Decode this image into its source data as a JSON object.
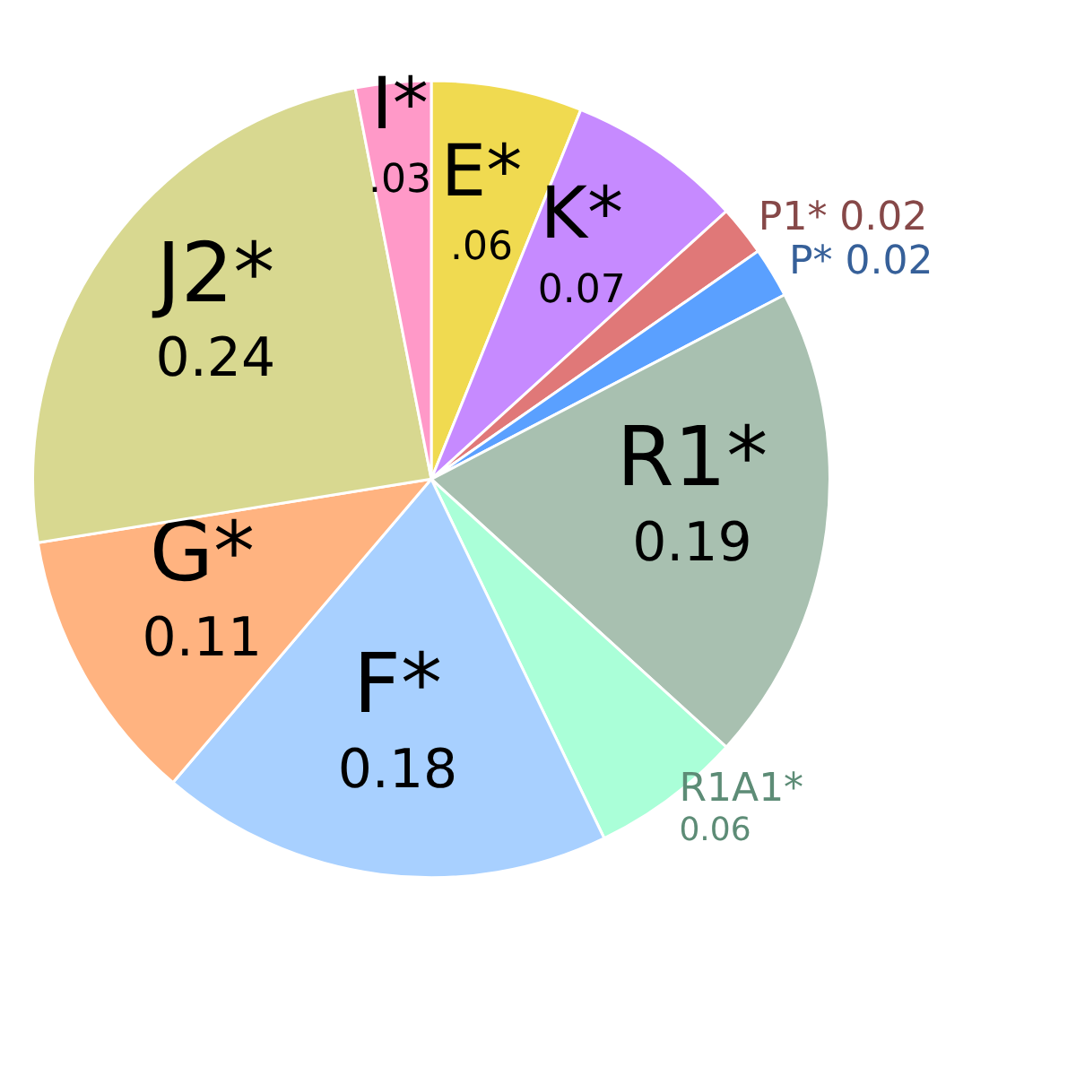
{
  "chart_data": {
    "type": "pie",
    "categories": [
      "E*",
      "K*",
      "P1*",
      "P*",
      "R1*",
      "R1A1*",
      "F*",
      "G*",
      "J2*",
      "I*"
    ],
    "values": [
      0.06,
      0.07,
      0.02,
      0.02,
      0.19,
      0.06,
      0.18,
      0.11,
      0.24,
      0.03
    ],
    "value_labels": [
      ".06",
      "0.07",
      "0.02",
      "0.02",
      "0.19",
      "0.06",
      "0.18",
      "0.11",
      "0.24",
      ".03"
    ],
    "colors": [
      "#f0da50",
      "#c68aff",
      "#e07878",
      "#5aa0ff",
      "#a8c0b0",
      "#aaffd8",
      "#a8d0ff",
      "#ffb380",
      "#d8d890",
      "#ff99c8"
    ]
  }
}
